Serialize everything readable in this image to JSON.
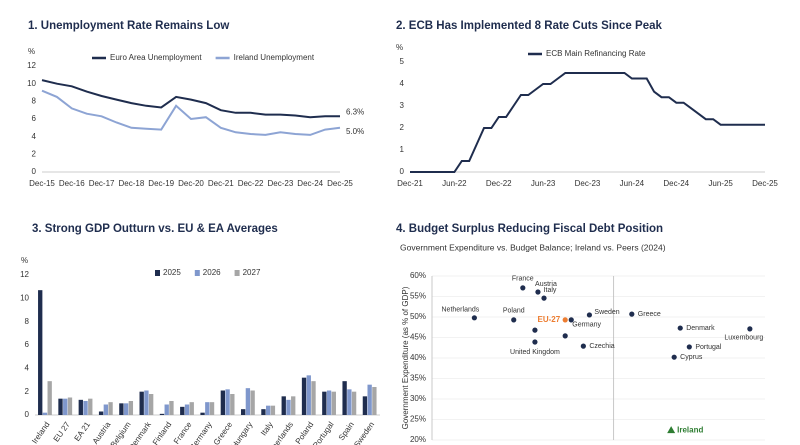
{
  "chart_data": [
    {
      "type": "line",
      "title": "1. Unemployment Rate Remains Low",
      "ylabel": "%",
      "categories": [
        "Dec-15",
        null,
        "Dec-16",
        null,
        "Dec-17",
        null,
        "Dec-18",
        null,
        "Dec-19",
        null,
        "Dec-20",
        null,
        "Dec-21",
        null,
        "Dec-22",
        null,
        "Dec-23",
        null,
        "Dec-24",
        null,
        "Dec-25"
      ],
      "series": [
        {
          "name": "Euro Area Unemployment",
          "color": "#1f2d4e",
          "values": [
            10.4,
            10.0,
            9.7,
            9.1,
            8.6,
            8.2,
            7.8,
            7.5,
            7.3,
            8.5,
            8.2,
            7.8,
            7.0,
            6.7,
            6.7,
            6.5,
            6.5,
            6.4,
            6.2,
            6.3,
            6.3
          ],
          "value_labels": [
            null,
            null,
            null,
            null,
            null,
            null,
            null,
            null,
            null,
            null,
            null,
            null,
            null,
            null,
            null,
            null,
            null,
            null,
            null,
            null,
            "6.3%"
          ]
        },
        {
          "name": "Ireland Unemployment",
          "color": "#8da4d4",
          "values": [
            9.2,
            8.5,
            7.2,
            6.6,
            6.3,
            5.6,
            5.0,
            4.9,
            4.8,
            7.5,
            6.0,
            6.2,
            5.0,
            4.5,
            4.3,
            4.2,
            4.5,
            4.3,
            4.2,
            4.8,
            5.0
          ],
          "value_labels": [
            null,
            null,
            null,
            null,
            null,
            null,
            null,
            null,
            null,
            null,
            null,
            null,
            null,
            null,
            null,
            null,
            null,
            null,
            null,
            null,
            "5.0%"
          ]
        }
      ],
      "ylim": [
        0,
        12
      ],
      "yticks": [
        0,
        2,
        4,
        6,
        8,
        10,
        12
      ],
      "legend": "top"
    },
    {
      "type": "line",
      "title": "2. ECB Has Implemented 8 Rate Cuts Since Peak",
      "ylabel": "%",
      "categories": [
        "Dec-21",
        null,
        null,
        null,
        null,
        null,
        "Jun-22",
        null,
        null,
        null,
        null,
        null,
        "Dec-22",
        null,
        null,
        null,
        null,
        null,
        "Jun-23",
        null,
        null,
        null,
        null,
        null,
        "Dec-23",
        null,
        null,
        null,
        null,
        null,
        "Jun-24",
        null,
        null,
        null,
        null,
        null,
        "Dec-24",
        null,
        null,
        null,
        null,
        null,
        "Jun-25",
        null,
        null,
        null,
        null,
        null,
        "Dec-25"
      ],
      "series": [
        {
          "name": "ECB Main Refinancing Rate",
          "color": "#1f2d4e",
          "values": [
            0,
            0,
            0,
            0,
            0,
            0,
            0,
            0.5,
            0.5,
            1.25,
            2.0,
            2.0,
            2.5,
            2.5,
            3.0,
            3.5,
            3.5,
            3.75,
            4.0,
            4.0,
            4.25,
            4.5,
            4.5,
            4.5,
            4.5,
            4.5,
            4.5,
            4.5,
            4.5,
            4.5,
            4.25,
            4.25,
            4.25,
            3.65,
            3.4,
            3.4,
            3.15,
            3.15,
            2.9,
            2.65,
            2.4,
            2.4,
            2.15,
            2.15,
            2.15,
            2.15,
            2.15,
            2.15,
            2.15
          ]
        }
      ],
      "ylim": [
        0,
        5
      ],
      "yticks": [
        0,
        1,
        2,
        3,
        4,
        5
      ],
      "legend": "top"
    },
    {
      "type": "bar",
      "title": "3. Strong GDP Outturn vs. EU & EA Averages",
      "ylabel": "%",
      "categories": [
        "Ireland",
        "EU 27",
        "EA 21",
        "Austria",
        "Belgium",
        "Denmark",
        "Finland",
        "France",
        "Germany",
        "Greece",
        "Hungary",
        "Italy",
        "Netherlands",
        "Poland",
        "Portugal",
        "Spain",
        "Sweden"
      ],
      "series": [
        {
          "name": "2025",
          "color": "#1f2d4e",
          "values": [
            10.7,
            1.4,
            1.3,
            0.3,
            1.0,
            2.0,
            0.1,
            0.7,
            0.2,
            2.1,
            0.5,
            0.5,
            1.6,
            3.2,
            2.0,
            2.9,
            1.6
          ]
        },
        {
          "name": "2026",
          "color": "#7f97cc",
          "values": [
            0.2,
            1.4,
            1.2,
            0.9,
            1.0,
            2.1,
            0.9,
            0.9,
            1.1,
            2.2,
            2.3,
            0.8,
            1.3,
            3.4,
            2.1,
            2.2,
            2.6
          ]
        },
        {
          "name": "2027",
          "color": "#a6a6a6",
          "values": [
            2.9,
            1.5,
            1.4,
            1.1,
            1.2,
            1.8,
            1.2,
            1.1,
            1.1,
            1.8,
            2.1,
            0.8,
            1.6,
            2.9,
            2.0,
            2.0,
            2.4
          ]
        }
      ],
      "ylim": [
        0,
        12
      ],
      "yticks": [
        0,
        2,
        4,
        6,
        8,
        10,
        12
      ],
      "legend": "top"
    },
    {
      "type": "scatter",
      "title": "4. Budget Surplus Reducing Fiscal Debt Position",
      "subtitle": "Government Expenditure vs. Budget Balance; Ireland vs. Peers (2024)",
      "ylabel": "Government Expenditure (as % of GDP)",
      "color": "#1f2d4e",
      "points": [
        {
          "label": "Netherlands",
          "x": -4.6,
          "y": 49.8
        },
        {
          "label": "France",
          "x": -3.0,
          "y": 57.1
        },
        {
          "label": "Austria",
          "x": -2.5,
          "y": 56.1
        },
        {
          "label": "Italy",
          "x": -2.3,
          "y": 54.6
        },
        {
          "label": "Poland",
          "x": -3.3,
          "y": 49.3
        },
        {
          "label": "Sweden",
          "x": -0.8,
          "y": 50.5
        },
        {
          "label": "EU-27",
          "x": -1.6,
          "y": 49.3,
          "color": "#ed7d31"
        },
        {
          "label": "Germany",
          "x": -1.4,
          "y": 49.3
        },
        {
          "label": null,
          "x": -2.6,
          "y": 46.8
        },
        {
          "label": null,
          "x": -1.6,
          "y": 45.4
        },
        {
          "label": "United Kingdom",
          "x": -2.6,
          "y": 43.9
        },
        {
          "label": "Czechia",
          "x": -1.0,
          "y": 42.9
        },
        {
          "label": "Greece",
          "x": 0.6,
          "y": 50.7
        },
        {
          "label": "Denmark",
          "x": 2.2,
          "y": 47.3
        },
        {
          "label": "Luxembourg",
          "x": 4.5,
          "y": 47.1
        },
        {
          "label": "Portugal",
          "x": 2.5,
          "y": 42.7
        },
        {
          "label": "Cyprus",
          "x": 2.0,
          "y": 40.2
        },
        {
          "label": "Ireland",
          "x": 1.9,
          "y": 22.4,
          "color": "#2e7d32",
          "marker": "triangle"
        }
      ],
      "xlim": [
        -6,
        5
      ],
      "ylim": [
        20,
        60
      ],
      "yticks": [
        {
          "value": 20,
          "label": "20%"
        },
        {
          "value": 25,
          "label": "25%"
        },
        {
          "value": 30,
          "label": "30%"
        },
        {
          "value": 35,
          "label": "35%"
        },
        {
          "value": 40,
          "label": "40%"
        },
        {
          "value": 45,
          "label": "45%"
        },
        {
          "value": 50,
          "label": "50%"
        },
        {
          "value": 55,
          "label": "55%"
        },
        {
          "value": 60,
          "label": "60%"
        }
      ]
    }
  ]
}
